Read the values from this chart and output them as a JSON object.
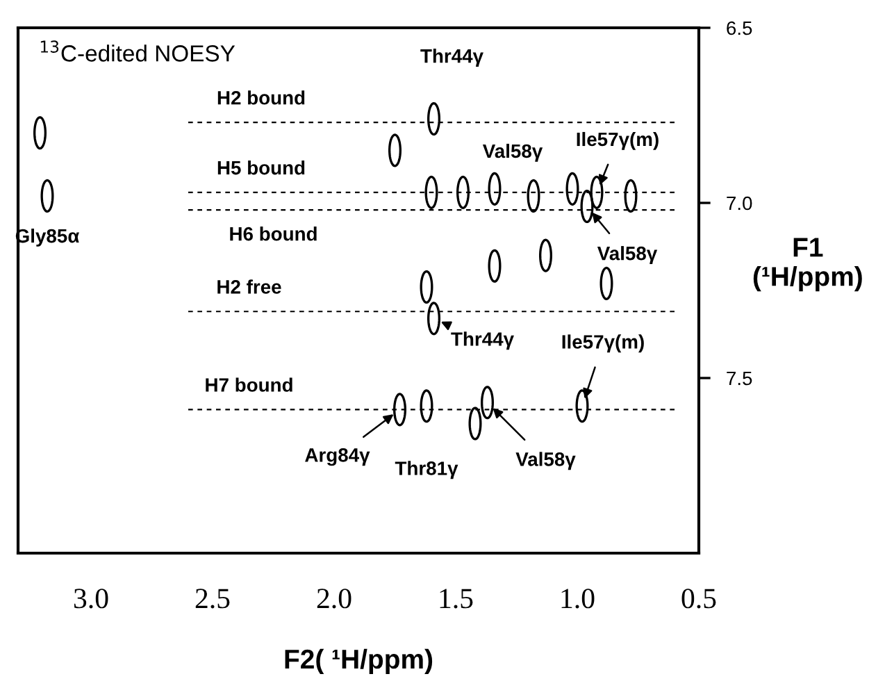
{
  "chart_data": {
    "type": "scatter",
    "xlabel": "F2( ¹H/ppm)",
    "ylabel": "F1\n(¹H/ppm)",
    "xlim": [
      3.3,
      0.5
    ],
    "xticks": [
      {
        "value": 3.0,
        "label": "3.0"
      },
      {
        "value": 2.5,
        "label": "2.5"
      },
      {
        "value": 2.0,
        "label": "2.0"
      },
      {
        "value": 1.5,
        "label": "1.5"
      },
      {
        "value": 1.0,
        "label": "1.0"
      },
      {
        "value": 0.5,
        "label": "0.5"
      }
    ],
    "ylim": [
      8.0,
      6.5
    ],
    "yticks": [
      {
        "value": 6.5,
        "label": "6.5"
      },
      {
        "value": 7.0,
        "label": "7.0"
      },
      {
        "value": 7.5,
        "label": "7.5"
      }
    ],
    "series": [
      {
        "color": "#000000",
        "x": [
          3.21,
          3.18,
          1.75,
          1.59,
          1.6,
          1.47,
          1.34,
          1.18,
          1.02,
          0.96,
          0.92,
          0.78,
          1.62,
          1.59,
          1.34,
          1.13,
          0.88,
          1.73,
          1.62,
          1.42,
          1.37,
          0.98
        ],
        "values": [
          6.8,
          6.98,
          6.85,
          6.76,
          6.97,
          6.97,
          6.96,
          6.98,
          6.96,
          7.01,
          6.97,
          6.98,
          7.24,
          7.33,
          7.18,
          7.15,
          7.23,
          7.59,
          7.58,
          7.63,
          7.57,
          7.58
        ]
      }
    ],
    "ref_lines": [
      {
        "axis": "y",
        "value": 6.77,
        "label": "H2 bound",
        "line_style": "dashed"
      },
      {
        "axis": "y",
        "value": 6.97,
        "label": "H5 bound",
        "line_style": "dashed"
      },
      {
        "axis": "y",
        "value": 7.02,
        "label": "H6 bound",
        "line_style": "dashed"
      },
      {
        "axis": "y",
        "value": 7.31,
        "label": "H2 free",
        "line_style": "dashed"
      },
      {
        "axis": "y",
        "value": 7.59,
        "label": "H7 bound",
        "line_style": "dashed"
      }
    ],
    "annotations": [
      "$^{13}$C-edited NOESY",
      {
        "text": "Thr44γ",
        "x": 1.59,
        "y": 6.76
      },
      {
        "text": "Val58γ",
        "x": 1.34,
        "y": 6.96
      },
      {
        "text": "Ile57γ(m)",
        "x": 0.92,
        "y": 6.97
      },
      {
        "text": "Gly85α",
        "x": 3.18,
        "y": 6.98
      },
      {
        "text": "Val58γ",
        "x": 0.96,
        "y": 7.01
      },
      {
        "text": "Thr44γ",
        "x": 1.59,
        "y": 7.33
      },
      {
        "text": "Ile57γ(m)",
        "x": 0.98,
        "y": 7.58
      },
      {
        "text": "Arg84γ",
        "x": 1.73,
        "y": 7.59
      },
      {
        "text": "Thr81γ",
        "x": 1.62,
        "y": 7.58
      },
      {
        "text": "Val58γ",
        "x": 1.37,
        "y": 7.57
      }
    ]
  }
}
